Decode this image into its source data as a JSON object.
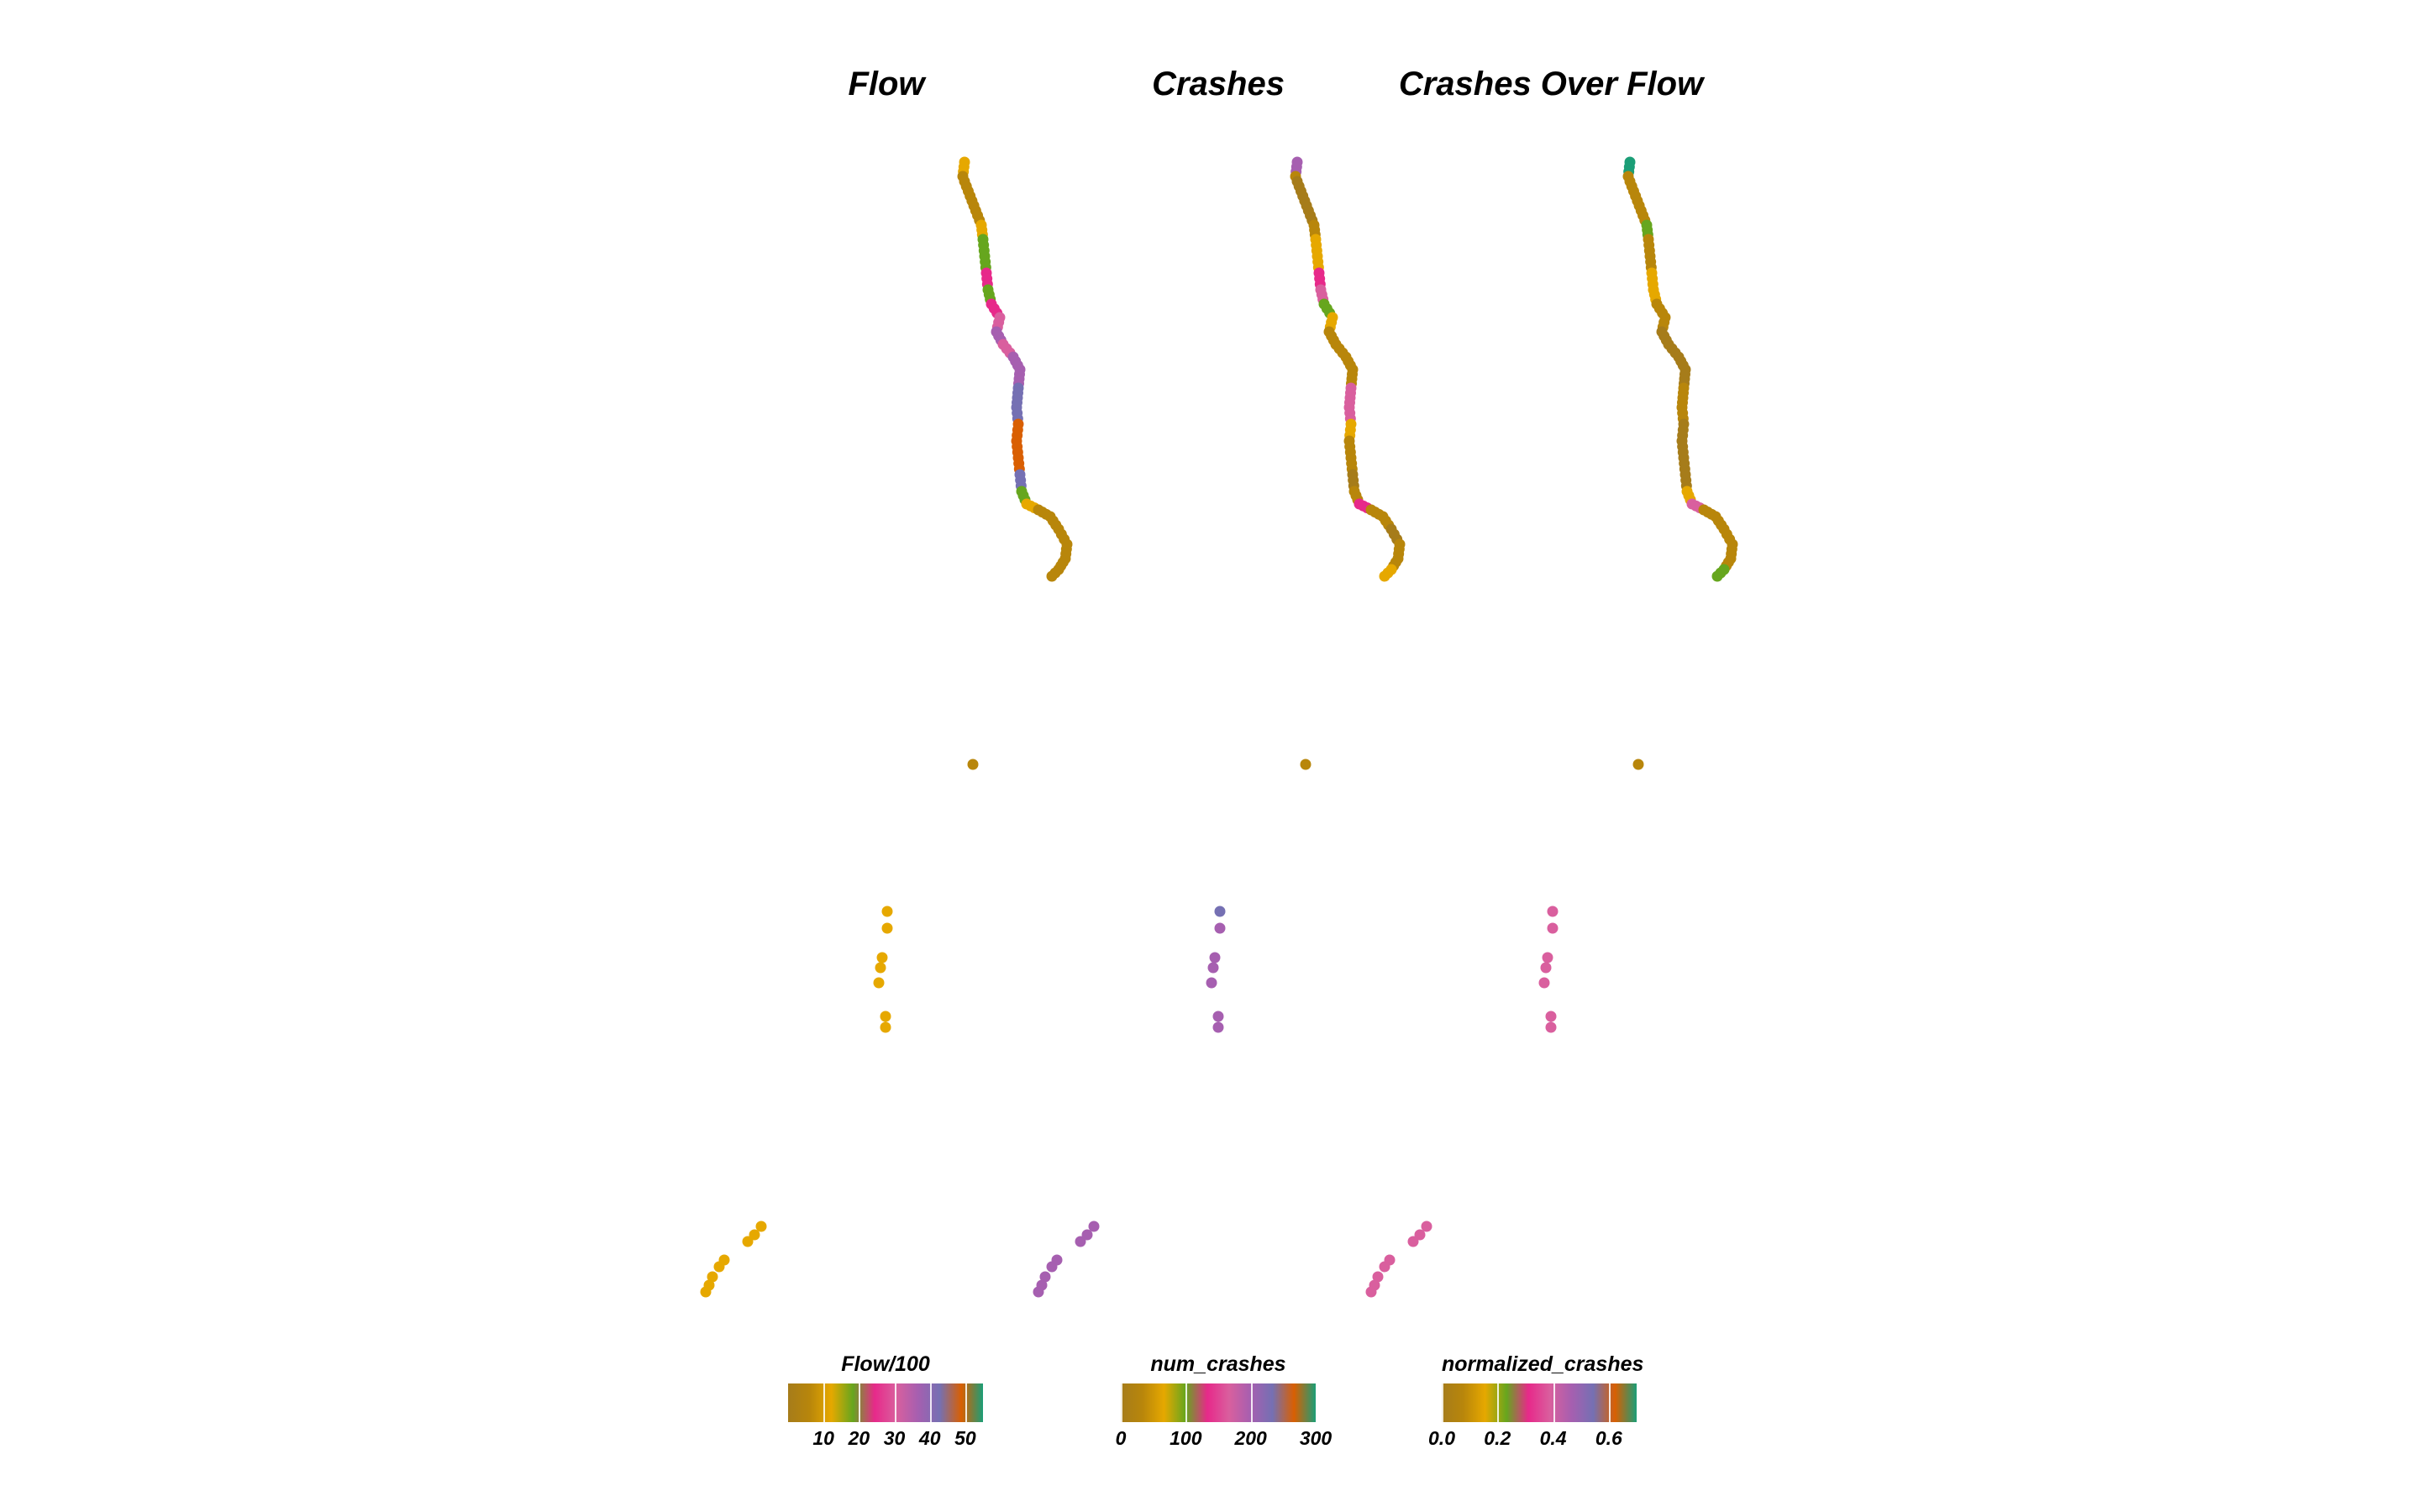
{
  "chart_data": [
    {
      "type": "scatter",
      "title": "Flow",
      "legend": {
        "title": "Flow/100",
        "placement": "bottom",
        "range": [
          0,
          55
        ],
        "ticks": [
          "10",
          "20",
          "30",
          "40",
          "50"
        ],
        "tick_values": [
          10,
          20,
          30,
          40,
          50
        ]
      },
      "series_colors": [
        "#a67c1a",
        "#b8860b",
        "#e6a800",
        "#66a61e",
        "#e7298a",
        "#d95f9e",
        "#a65fb0",
        "#7570b3",
        "#d95f02",
        "#1b9e77"
      ],
      "values": [
        12,
        8,
        6,
        14,
        16,
        18,
        22,
        20,
        24,
        30,
        34,
        32,
        36,
        38,
        40,
        44,
        48,
        50,
        46,
        42,
        20,
        14,
        8,
        6,
        5,
        7,
        6,
        9,
        8,
        12,
        10
      ]
    },
    {
      "type": "scatter",
      "title": "Crashes",
      "legend": {
        "title": "num_crashes",
        "placement": "bottom",
        "range": [
          0,
          300
        ],
        "ticks": [
          "0",
          "100",
          "200",
          "300"
        ],
        "tick_values": [
          0,
          100,
          200,
          300
        ]
      },
      "values": [
        210,
        20,
        15,
        40,
        50,
        60,
        120,
        150,
        90,
        60,
        40,
        20,
        30,
        40,
        160,
        170,
        60,
        40,
        20,
        10,
        40,
        120,
        40,
        20,
        15,
        20,
        30,
        60,
        40,
        240,
        200
      ]
    },
    {
      "type": "scatter",
      "title": "Crashes Over Flow",
      "legend": {
        "title": "normalized_crashes",
        "placement": "bottom",
        "range": [
          0,
          0.7
        ],
        "ticks": [
          "0.0",
          "0.2",
          "0.4",
          "0.6"
        ],
        "tick_values": [
          0.0,
          0.2,
          0.4,
          0.6
        ]
      },
      "values": [
        0.68,
        0.05,
        0.04,
        0.2,
        0.1,
        0.08,
        0.15,
        0.12,
        0.05,
        0.04,
        0.03,
        0.02,
        0.02,
        0.03,
        0.04,
        0.05,
        0.03,
        0.02,
        0.02,
        0.02,
        0.14,
        0.36,
        0.1,
        0.06,
        0.05,
        0.06,
        0.08,
        0.2,
        0.1,
        0.42,
        0.36
      ]
    }
  ]
}
